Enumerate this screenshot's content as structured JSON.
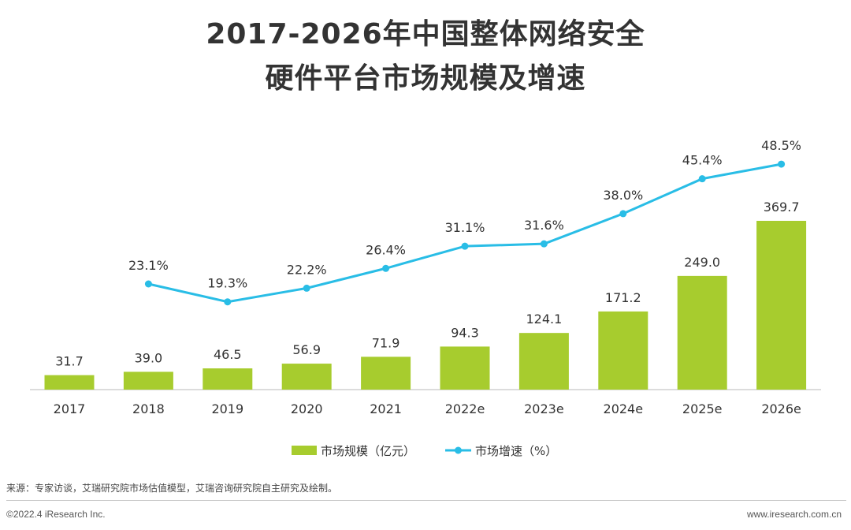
{
  "title_line1": "2017-2026年中国整体网络安全",
  "title_line2": "硬件平台市场规模及增速",
  "chart_data": {
    "type": "bar",
    "categories": [
      "2017",
      "2018",
      "2019",
      "2020",
      "2021",
      "2022e",
      "2023e",
      "2024e",
      "2025e",
      "2026e"
    ],
    "series": [
      {
        "name": "市场规模（亿元）",
        "type": "bar",
        "values": [
          31.7,
          39.0,
          46.5,
          56.9,
          71.9,
          94.3,
          124.1,
          171.2,
          249.0,
          369.7
        ],
        "labels": [
          "31.7",
          "39.0",
          "46.5",
          "56.9",
          "71.9",
          "94.3",
          "124.1",
          "171.2",
          "249.0",
          "369.7"
        ]
      },
      {
        "name": "市场增速（%）",
        "type": "line",
        "values": [
          null,
          23.1,
          19.3,
          22.2,
          26.4,
          31.1,
          31.6,
          38.0,
          45.4,
          48.5
        ],
        "labels": [
          "",
          "23.1%",
          "19.3%",
          "22.2%",
          "26.4%",
          "31.1%",
          "31.6%",
          "38.0%",
          "45.4%",
          "48.5%"
        ]
      }
    ],
    "legend_position": "bottom",
    "grid": false
  },
  "colors": {
    "bar": "#a7cc2e",
    "line": "#29bde6",
    "axis": "#d0d0d0",
    "text": "#333333"
  },
  "footer": {
    "source": "来源：专家访谈，艾瑞研究院市场估值模型，艾瑞咨询研究院自主研究及绘制。",
    "copyright": "©2022.4 iResearch Inc.",
    "website": "www.iresearch.com.cn"
  }
}
